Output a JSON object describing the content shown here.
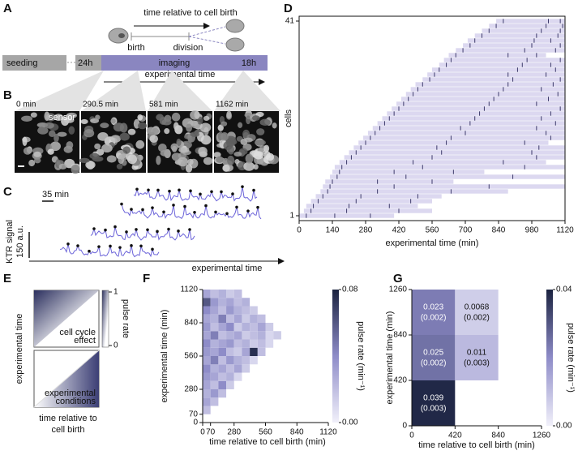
{
  "panel_labels": [
    "A",
    "B",
    "C",
    "D",
    "E",
    "F",
    "G"
  ],
  "panel_a": {
    "cell_relative_label": "time relative to cell birth",
    "birth": "birth",
    "division": "division",
    "seeding": "seeding",
    "start": "24h",
    "imaging": "imaging",
    "end": "18h",
    "experimental_time": "experimental time"
  },
  "panel_b": {
    "times": [
      "0 min",
      "290.5 min",
      "581 min",
      "1162 min"
    ],
    "sensor": "sensor"
  },
  "panel_c": {
    "time_scale": "35 min",
    "y_label": "KTR signal",
    "signal_scale": "150 a.u.",
    "x_label": "experimental time"
  },
  "panel_d": {
    "y_label": "cells",
    "x_label": "experimental time (min)",
    "xlim": [
      0,
      1120
    ],
    "xticks": [
      0,
      140,
      280,
      420,
      560,
      700,
      840,
      980,
      1120
    ],
    "ylim": [
      0,
      42
    ],
    "yticks": [
      1,
      41
    ],
    "starts": [
      0,
      20,
      30,
      50,
      70,
      90,
      100,
      110,
      130,
      140,
      150,
      170,
      190,
      210,
      230,
      250,
      270,
      290,
      310,
      330,
      350,
      370,
      390,
      410,
      430,
      450,
      470,
      490,
      520,
      540,
      560,
      590,
      610,
      630,
      660,
      690,
      710,
      740,
      770,
      800,
      830
    ],
    "ends": [
      400,
      560,
      500,
      560,
      600,
      880,
      1120,
      650,
      1120,
      780,
      1120,
      1040,
      1120,
      1120,
      1120,
      1050,
      1120,
      1120,
      1120,
      1120,
      1120,
      1120,
      1120,
      1120,
      1120,
      1120,
      1120,
      1120,
      1120,
      1120,
      1120,
      1120,
      1120,
      1040,
      1120,
      1120,
      1120,
      1120,
      1120,
      1120,
      1120
    ],
    "pulses": [
      [
        30,
        150,
        300
      ],
      [
        50,
        200,
        420
      ],
      [
        60,
        210,
        380
      ],
      [
        80,
        240,
        470
      ],
      [
        100,
        260,
        500
      ],
      [
        120,
        330,
        640
      ],
      [
        130,
        400,
        800
      ],
      [
        140,
        330,
        560
      ],
      [
        160,
        450,
        900
      ],
      [
        170,
        400,
        650
      ],
      [
        180,
        520,
        950
      ],
      [
        200,
        480,
        860
      ],
      [
        220,
        560,
        1000
      ],
      [
        240,
        600,
        980
      ],
      [
        260,
        580,
        1010
      ],
      [
        280,
        620,
        950
      ],
      [
        300,
        640,
        1060
      ],
      [
        320,
        700,
        1040
      ],
      [
        340,
        680,
        1000
      ],
      [
        360,
        720,
        1080
      ],
      [
        380,
        740,
        1020
      ],
      [
        400,
        760,
        1060
      ],
      [
        420,
        780,
        1100
      ],
      [
        440,
        800,
        1000
      ],
      [
        460,
        820,
        1050
      ],
      [
        480,
        840,
        1090
      ],
      [
        500,
        860,
        1020
      ],
      [
        520,
        880,
        1070
      ],
      [
        550,
        900,
        1100
      ],
      [
        570,
        880,
        1040
      ],
      [
        590,
        920,
        1080
      ],
      [
        620,
        940,
        1060
      ],
      [
        640,
        960,
        1100
      ],
      [
        660,
        880,
        1000
      ],
      [
        690,
        950,
        1080
      ],
      [
        720,
        980,
        1100
      ],
      [
        740,
        990,
        1060
      ],
      [
        770,
        1000,
        1090
      ],
      [
        800,
        1020,
        1100
      ],
      [
        830,
        1040,
        1110
      ],
      [
        860,
        1050,
        1100
      ]
    ]
  },
  "panel_e": {
    "colorbar_label": "pulse rate",
    "colorbar_ticks": [
      1,
      0
    ],
    "top_note": [
      "cell cycle",
      "effect"
    ],
    "bottom_note": [
      "experimental",
      "conditions"
    ],
    "y_label": "experimental time",
    "x_label": [
      "time relative to",
      "cell birth"
    ]
  },
  "panel_f": {
    "y_label": "experimental time (min)",
    "x_label": "time relative to cell birth (min)",
    "colorbar_label": "pulse rate (min⁻¹)",
    "xlim": [
      0,
      1120
    ],
    "xticks": [
      0,
      70,
      280,
      560,
      840,
      1120
    ],
    "ylim": [
      0,
      1120
    ],
    "yticks": [
      0,
      70,
      280,
      560,
      840,
      1120
    ],
    "clim": [
      0,
      0.08
    ],
    "cticks": [
      0.08,
      {
        "value": 0,
        "label": "0.00"
      }
    ],
    "rows": [
      {
        "y": 70,
        "values": [
          0.02
        ]
      },
      {
        "y": 140,
        "values": [
          0.03,
          0.02
        ]
      },
      {
        "y": 210,
        "values": [
          0.025,
          0.035,
          0.02
        ]
      },
      {
        "y": 280,
        "values": [
          0.03,
          0.02,
          0.04,
          0.015
        ]
      },
      {
        "y": 350,
        "values": [
          0.035,
          0.03,
          0.02,
          0.025,
          0.01
        ]
      },
      {
        "y": 420,
        "values": [
          0.04,
          0.025,
          0.03,
          0.02,
          0.03,
          0.015
        ]
      },
      {
        "y": 490,
        "values": [
          0.03,
          0.045,
          0.02,
          0.035,
          0.025,
          0.02,
          0.01
        ]
      },
      {
        "y": 560,
        "values": [
          0.035,
          0.03,
          0.04,
          0.02,
          0.015,
          0.03,
          0.075,
          0.02
        ]
      },
      {
        "y": 630,
        "values": [
          0.04,
          0.025,
          0.03,
          0.035,
          0.02,
          0.025,
          0.015,
          0.02,
          0.01
        ]
      },
      {
        "y": 700,
        "values": [
          0.03,
          0.045,
          0.02,
          0.025,
          0.03,
          0.015,
          0.02,
          0.025,
          0.01,
          0.015
        ]
      },
      {
        "y": 770,
        "values": [
          0.035,
          0.02,
          0.03,
          0.04,
          0.015,
          0.025,
          0.02,
          0.03,
          0.015
        ]
      },
      {
        "y": 840,
        "values": [
          0.03,
          0.025,
          0.045,
          0.02,
          0.03,
          0.015,
          0.025,
          0.02
        ]
      },
      {
        "y": 910,
        "values": [
          0.04,
          0.03,
          0.02,
          0.035,
          0.025,
          0.02,
          0.015
        ]
      },
      {
        "y": 980,
        "values": [
          0.06,
          0.035,
          0.025,
          0.03,
          0.02,
          0.025
        ]
      },
      {
        "y": 1050,
        "values": [
          0.03,
          0.02,
          0.025,
          0.015,
          0.02
        ]
      }
    ]
  },
  "panel_g": {
    "y_label": "experimental time (min)",
    "x_label": "time relative to cell birth (min)",
    "colorbar_label": "pulse rate (min⁻¹)",
    "xlim": [
      0,
      1260
    ],
    "xticks": [
      0,
      420,
      840,
      1260
    ],
    "ylim": [
      0,
      1260
    ],
    "yticks": [
      0,
      420,
      840,
      1260
    ],
    "clim": [
      0,
      0.04
    ],
    "cticks": [
      0.04,
      {
        "value": 0,
        "label": "0.00"
      }
    ],
    "cells": [
      {
        "x": 0,
        "y": 0,
        "value": 0.039,
        "error": 0.003,
        "error_label": "(0.003)"
      },
      {
        "x": 0,
        "y": 420,
        "value": 0.025,
        "error": 0.002,
        "error_label": "(0.002)"
      },
      {
        "x": 420,
        "y": 420,
        "value": 0.011,
        "error": 0.003,
        "error_label": "(0.003)"
      },
      {
        "x": 0,
        "y": 840,
        "value": 0.023,
        "error": 0.002,
        "error_label": "(0.002)"
      },
      {
        "x": 420,
        "y": 840,
        "value": 0.0068,
        "error": 0.002,
        "error_label": "(0.002)"
      }
    ]
  }
}
